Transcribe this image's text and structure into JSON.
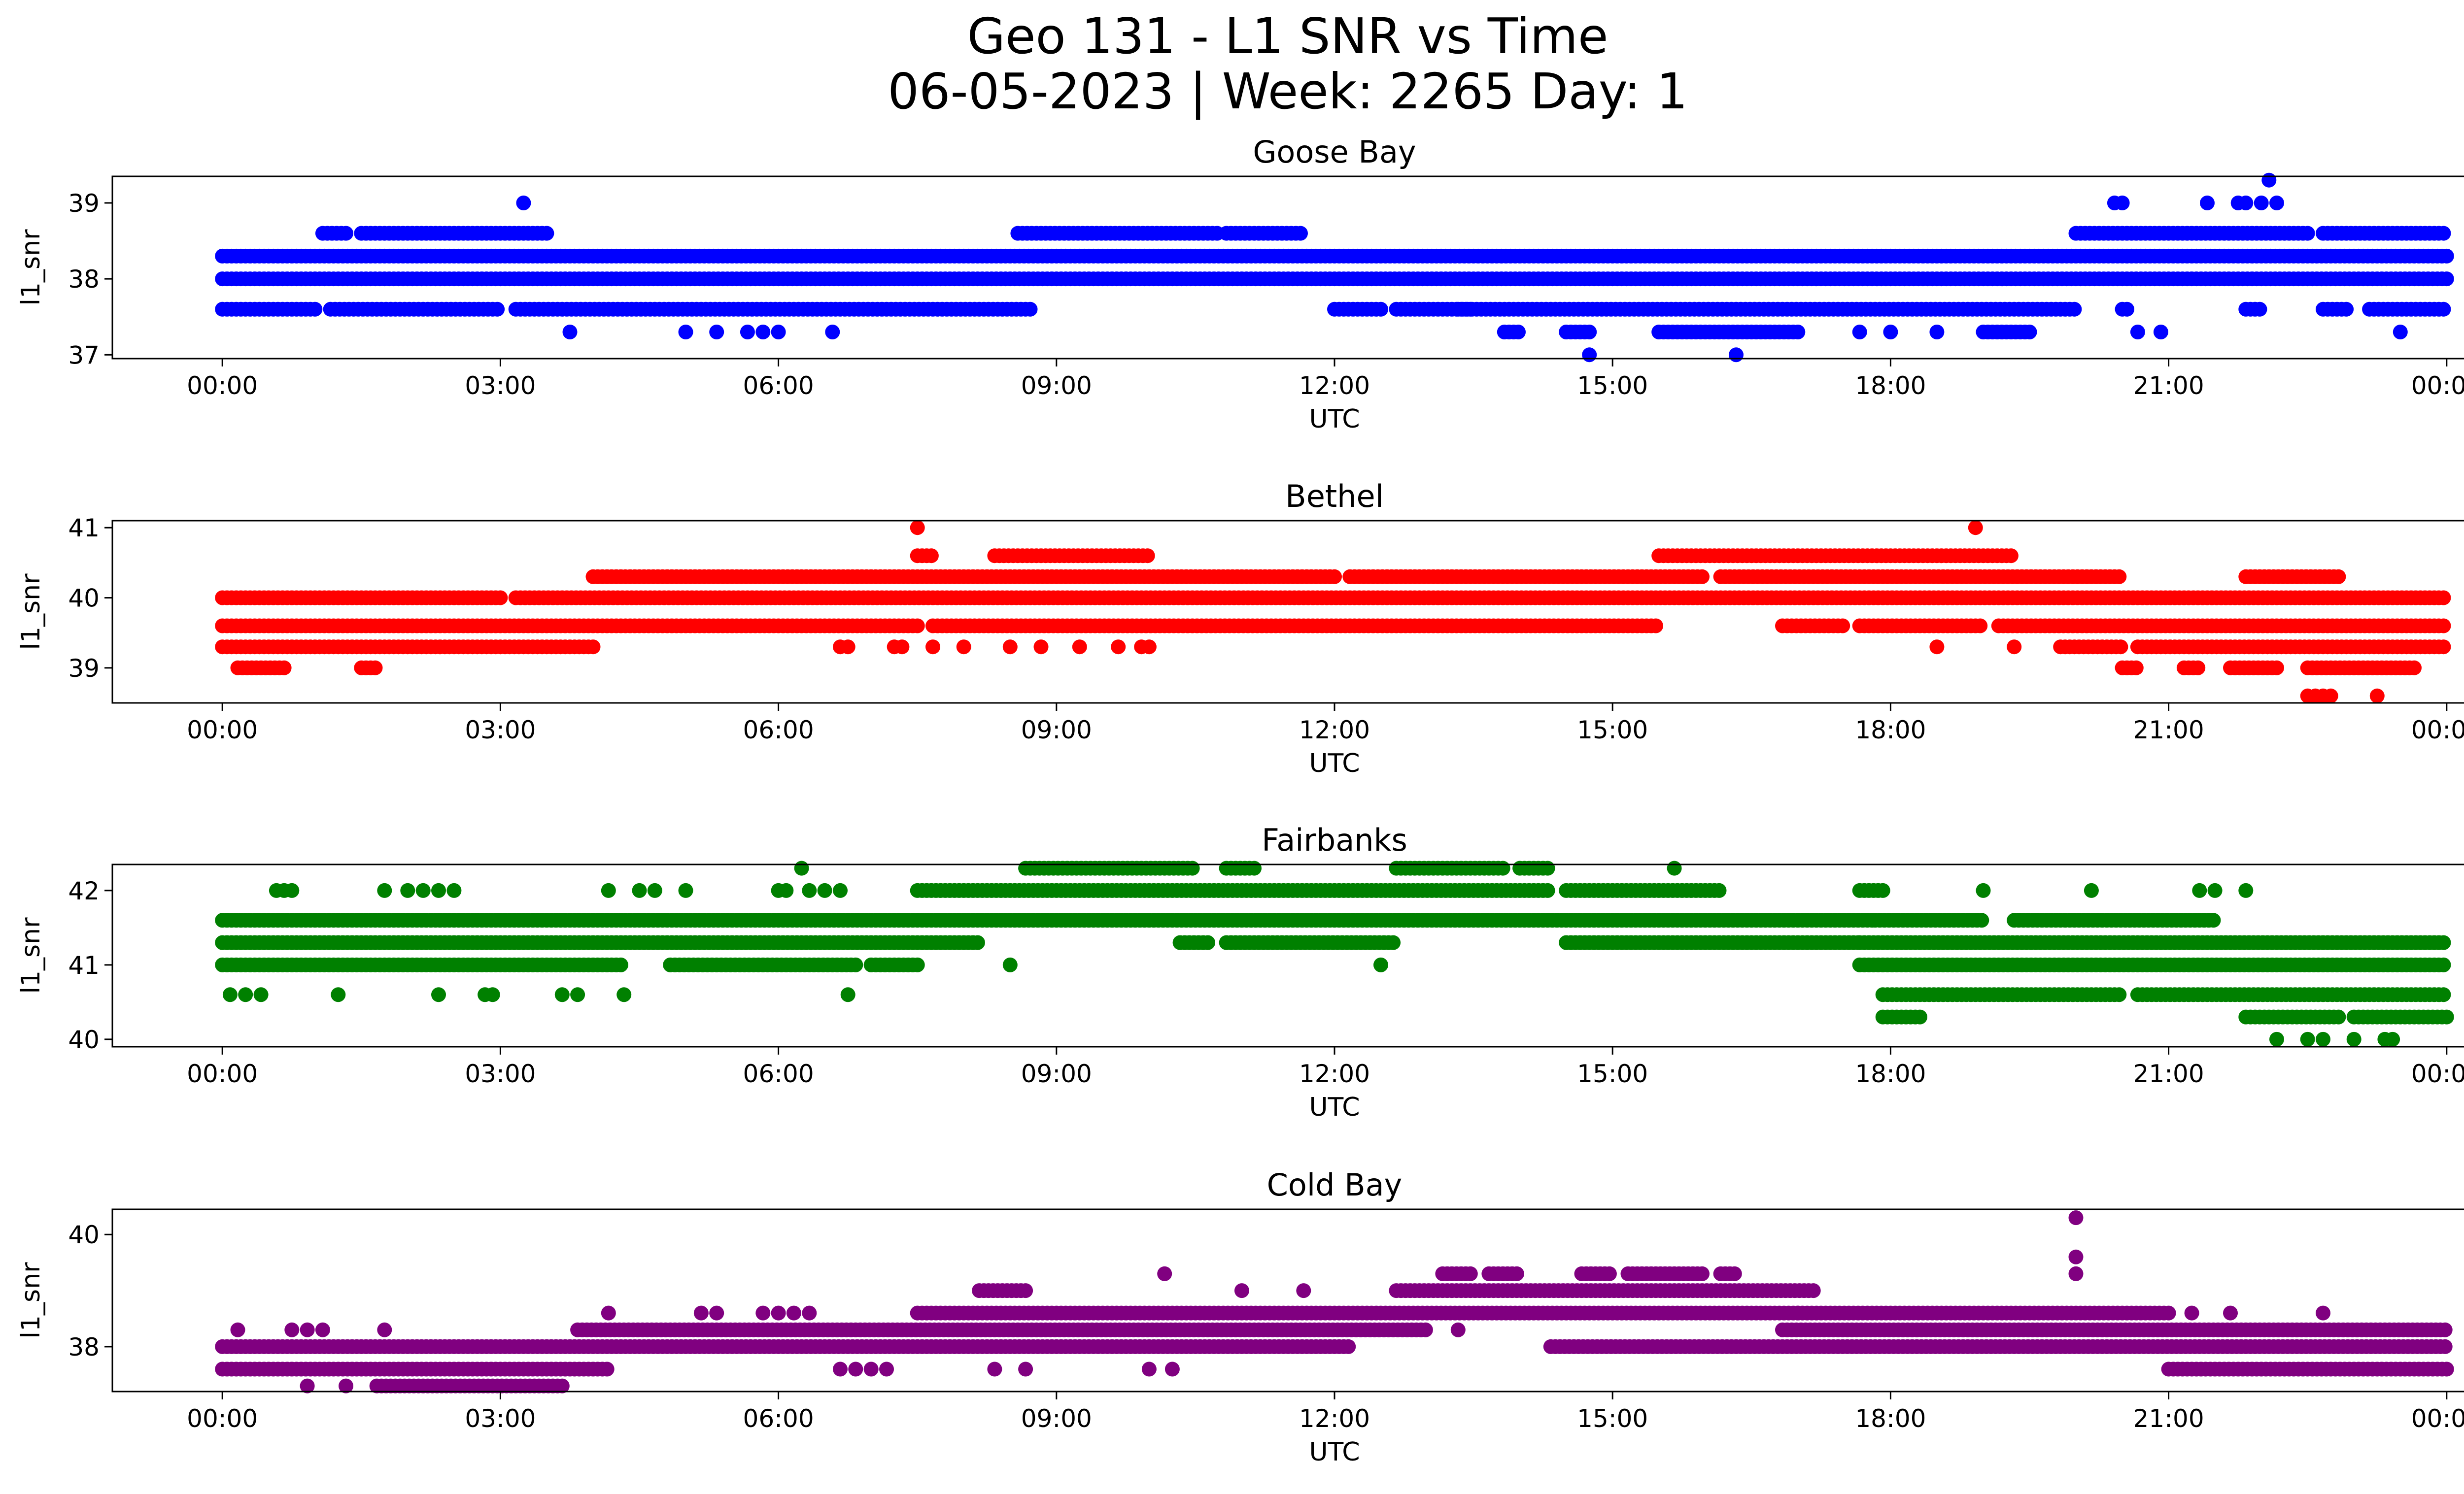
{
  "figure": {
    "title_line1": "Geo 131 - L1 SNR vs Time",
    "title_line2": "06-05-2023 | Week: 2265 Day: 1"
  },
  "chart_data": [
    {
      "type": "scatter",
      "title": "Goose Bay",
      "xlabel": "UTC",
      "ylabel": "l1_snr",
      "color": "#0000ff",
      "xlim": [
        "00:00",
        "24:00"
      ],
      "ylim": [
        36.95,
        39.35
      ],
      "xticks": [
        "00:00",
        "03:00",
        "06:00",
        "09:00",
        "12:00",
        "15:00",
        "18:00",
        "21:00",
        "00:00"
      ],
      "yticks": [
        37,
        38,
        39
      ],
      "grid": false,
      "series": [
        {
          "y": 38.3,
          "x_ranges": [
            [
              "00:00",
              "24:00"
            ]
          ]
        },
        {
          "y": 38.0,
          "x_ranges": [
            [
              "00:00",
              "24:00"
            ]
          ]
        },
        {
          "y": 37.6,
          "x_ranges": [
            [
              "00:00",
              "01:00"
            ],
            [
              "01:10",
              "03:00"
            ],
            [
              "03:10",
              "08:45"
            ],
            [
              "12:00",
              "12:30"
            ],
            [
              "12:40",
              "13:30"
            ],
            [
              "13:20",
              "20:00"
            ],
            [
              "20:30",
              "20:35"
            ],
            [
              "21:50",
              "22:00"
            ],
            [
              "22:40",
              "22:55"
            ],
            [
              "23:10",
              "24:00"
            ]
          ]
        },
        {
          "y": 38.6,
          "x_ranges": [
            [
              "01:05",
              "01:20"
            ],
            [
              "01:30",
              "03:30"
            ],
            [
              "08:35",
              "10:45"
            ],
            [
              "10:50",
              "11:40"
            ],
            [
              "20:00",
              "22:30"
            ],
            [
              "22:40",
              "24:00"
            ]
          ]
        },
        {
          "y": 37.3,
          "x_ranges": [
            [
              "13:50",
              "14:00"
            ],
            [
              "14:30",
              "14:45"
            ],
            [
              "15:30",
              "17:00"
            ],
            [
              "19:00",
              "19:30"
            ]
          ]
        },
        {
          "y": 37.0,
          "x": [
            "14:45",
            "16:20"
          ]
        },
        {
          "y": 39.0,
          "x": [
            "03:15",
            "20:25",
            "20:30",
            "21:25",
            "21:45",
            "21:50",
            "22:00",
            "22:10"
          ]
        },
        {
          "y": 39.3,
          "x": [
            "22:05"
          ]
        },
        {
          "y": 37.3,
          "x": [
            "03:45",
            "05:00",
            "05:20",
            "05:40",
            "05:50",
            "06:00",
            "06:35",
            "17:40",
            "18:00",
            "18:30",
            "20:40",
            "20:55",
            "23:30"
          ]
        }
      ]
    },
    {
      "type": "scatter",
      "title": "Bethel",
      "xlabel": "UTC",
      "ylabel": "l1_snr",
      "color": "#ff0000",
      "xlim": [
        "00:00",
        "24:00"
      ],
      "ylim": [
        38.5,
        41.1
      ],
      "xticks": [
        "00:00",
        "03:00",
        "06:00",
        "09:00",
        "12:00",
        "15:00",
        "18:00",
        "21:00",
        "00:00"
      ],
      "yticks": [
        39,
        40,
        41
      ],
      "grid": false,
      "series": [
        {
          "y": 40.0,
          "x_ranges": [
            [
              "00:00",
              "03:00"
            ],
            [
              "03:10",
              "24:00"
            ]
          ]
        },
        {
          "y": 39.6,
          "x_ranges": [
            [
              "00:00",
              "07:30"
            ],
            [
              "07:40",
              "15:30"
            ],
            [
              "16:50",
              "17:30"
            ],
            [
              "17:40",
              "19:00"
            ],
            [
              "19:10",
              "24:00"
            ]
          ]
        },
        {
          "y": 39.3,
          "x_ranges": [
            [
              "00:00",
              "04:00"
            ],
            [
              "19:50",
              "20:30"
            ],
            [
              "20:40",
              "24:00"
            ]
          ]
        },
        {
          "y": 40.3,
          "x_ranges": [
            [
              "04:00",
              "12:00"
            ],
            [
              "12:10",
              "16:00"
            ],
            [
              "16:10",
              "20:30"
            ],
            [
              "21:50",
              "22:50"
            ]
          ]
        },
        {
          "y": 40.6,
          "x_ranges": [
            [
              "07:30",
              "07:40"
            ],
            [
              "08:20",
              "10:00"
            ],
            [
              "15:30",
              "19:20"
            ]
          ]
        },
        {
          "y": 39.0,
          "x_ranges": [
            [
              "00:10",
              "00:40"
            ],
            [
              "01:30",
              "01:40"
            ],
            [
              "20:30",
              "20:40"
            ],
            [
              "21:10",
              "21:20"
            ],
            [
              "21:40",
              "22:10"
            ],
            [
              "22:30",
              "23:40"
            ]
          ]
        },
        {
          "y": 38.6,
          "x": [
            "22:30",
            "22:35",
            "22:40",
            "22:45",
            "23:15"
          ]
        },
        {
          "y": 41.0,
          "x": [
            "07:30",
            "18:55"
          ]
        },
        {
          "y": 39.3,
          "x": [
            "06:40",
            "06:45",
            "07:15",
            "07:20",
            "07:40",
            "08:00",
            "08:30",
            "08:50",
            "09:15",
            "09:40",
            "09:55",
            "10:00",
            "18:30",
            "19:20"
          ]
        }
      ]
    },
    {
      "type": "scatter",
      "title": "Fairbanks",
      "xlabel": "UTC",
      "ylabel": "l1_snr",
      "color": "#008000",
      "xlim": [
        "00:00",
        "24:00"
      ],
      "ylim": [
        39.9,
        42.35
      ],
      "xticks": [
        "00:00",
        "03:00",
        "06:00",
        "09:00",
        "12:00",
        "15:00",
        "18:00",
        "21:00",
        "00:00"
      ],
      "yticks": [
        40,
        41,
        42
      ],
      "grid": false,
      "series": [
        {
          "y": 41.6,
          "x_ranges": [
            [
              "00:00",
              "17:50"
            ],
            [
              "17:50",
              "19:00"
            ],
            [
              "19:20",
              "21:30"
            ]
          ]
        },
        {
          "y": 41.3,
          "x_ranges": [
            [
              "00:00",
              "08:10"
            ],
            [
              "10:20",
              "10:40"
            ],
            [
              "10:50",
              "12:40"
            ],
            [
              "14:30",
              "17:40"
            ],
            [
              "17:40",
              "24:00"
            ]
          ]
        },
        {
          "y": 41.0,
          "x_ranges": [
            [
              "00:00",
              "04:20"
            ],
            [
              "04:50",
              "06:50"
            ],
            [
              "07:00",
              "07:30"
            ],
            [
              "17:40",
              "24:00"
            ]
          ]
        },
        {
          "y": 42.0,
          "x_ranges": [
            [
              "07:30",
              "14:20"
            ],
            [
              "14:30",
              "16:10"
            ],
            [
              "17:40",
              "17:55"
            ]
          ]
        },
        {
          "y": 42.3,
          "x_ranges": [
            [
              "08:40",
              "10:30"
            ],
            [
              "10:50",
              "11:10"
            ],
            [
              "12:40",
              "13:50"
            ],
            [
              "14:00",
              "14:20"
            ]
          ]
        },
        {
          "y": 40.6,
          "x_ranges": [
            [
              "17:55",
              "20:30"
            ],
            [
              "20:40",
              "24:00"
            ]
          ]
        },
        {
          "y": 40.3,
          "x_ranges": [
            [
              "17:55",
              "18:20"
            ],
            [
              "21:50",
              "22:50"
            ],
            [
              "23:00",
              "24:00"
            ]
          ]
        },
        {
          "y": 40.0,
          "x": [
            "22:10",
            "22:30",
            "22:40",
            "23:00",
            "23:20",
            "23:25"
          ]
        },
        {
          "y": 40.6,
          "x": [
            "00:05",
            "00:15",
            "00:25",
            "01:15",
            "02:20",
            "02:50",
            "02:55",
            "03:40",
            "03:50",
            "04:20",
            "06:45"
          ]
        },
        {
          "y": 42.0,
          "x": [
            "00:35",
            "00:40",
            "00:45",
            "01:45",
            "02:00",
            "02:10",
            "02:20",
            "02:30",
            "04:10",
            "04:30",
            "04:40",
            "05:00",
            "06:00",
            "06:05",
            "06:20",
            "06:30",
            "06:40",
            "19:00",
            "20:10",
            "21:20",
            "21:30",
            "21:50"
          ]
        },
        {
          "y": 42.3,
          "x": [
            "06:15",
            "15:40"
          ]
        },
        {
          "y": 41.0,
          "x": [
            "08:30",
            "12:30"
          ]
        }
      ]
    },
    {
      "type": "scatter",
      "title": "Cold Bay",
      "xlabel": "UTC",
      "ylabel": "l1_snr",
      "color": "#800080",
      "xlim": [
        "00:00",
        "24:00"
      ],
      "ylim": [
        37.2,
        40.45
      ],
      "xticks": [
        "00:00",
        "03:00",
        "06:00",
        "09:00",
        "12:00",
        "15:00",
        "18:00",
        "21:00",
        "00:00"
      ],
      "yticks": [
        38,
        40
      ],
      "grid": false,
      "series": [
        {
          "y": 38.0,
          "x_ranges": [
            [
              "00:00",
              "12:10"
            ],
            [
              "14:20",
              "24:00"
            ]
          ]
        },
        {
          "y": 37.6,
          "x_ranges": [
            [
              "00:00",
              "04:10"
            ],
            [
              "21:00",
              "24:00"
            ]
          ]
        },
        {
          "y": 38.3,
          "x_ranges": [
            [
              "03:50",
              "13:00"
            ],
            [
              "16:50",
              "24:00"
            ]
          ]
        },
        {
          "y": 38.6,
          "x_ranges": [
            [
              "07:30",
              "17:00"
            ],
            [
              "17:00",
              "21:00"
            ]
          ]
        },
        {
          "y": 39.0,
          "x_ranges": [
            [
              "08:10",
              "08:40"
            ],
            [
              "12:40",
              "17:10"
            ]
          ]
        },
        {
          "y": 39.3,
          "x_ranges": [
            [
              "13:10",
              "13:30"
            ],
            [
              "13:40",
              "14:00"
            ],
            [
              "14:40",
              "15:00"
            ],
            [
              "15:10",
              "16:00"
            ],
            [
              "16:10",
              "16:20"
            ]
          ]
        },
        {
          "y": 37.3,
          "x_ranges": [
            [
              "01:40",
              "03:40"
            ]
          ]
        },
        {
          "y": 37.3,
          "x": [
            "00:55",
            "01:20"
          ]
        },
        {
          "y": 38.3,
          "x": [
            "00:10",
            "00:45",
            "00:55",
            "01:05",
            "01:45"
          ]
        },
        {
          "y": 37.6,
          "x": [
            "06:40",
            "06:50",
            "07:00",
            "07:10",
            "08:20",
            "08:40",
            "10:00",
            "10:15"
          ]
        },
        {
          "y": 38.6,
          "x": [
            "04:10",
            "05:10",
            "05:20",
            "05:50",
            "06:00",
            "06:10",
            "06:20",
            "22:40"
          ]
        },
        {
          "y": 39.3,
          "x": [
            "10:10"
          ]
        },
        {
          "y": 39.0,
          "x": [
            "11:00",
            "11:40"
          ]
        },
        {
          "y": 38.3,
          "x": [
            "13:20"
          ]
        },
        {
          "y": 40.3,
          "x": [
            "20:00"
          ]
        },
        {
          "y": 39.6,
          "x": [
            "20:00"
          ]
        },
        {
          "y": 39.3,
          "x": [
            "20:00"
          ]
        },
        {
          "y": 38.6,
          "x": [
            "21:15",
            "21:40"
          ]
        }
      ]
    }
  ]
}
